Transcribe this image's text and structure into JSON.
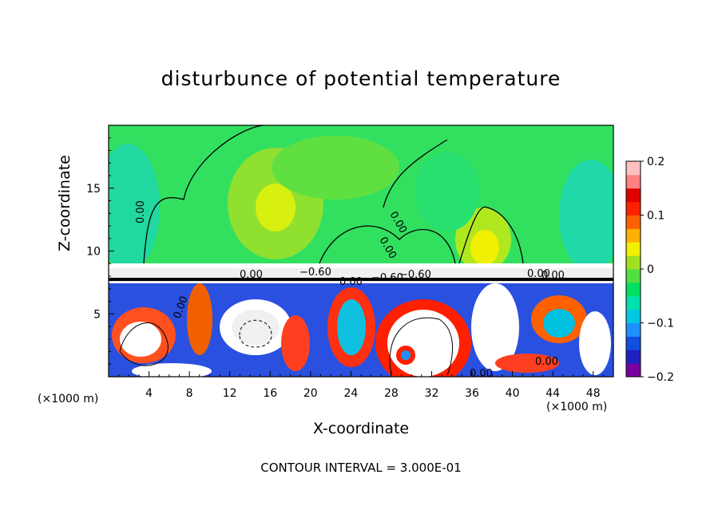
{
  "chart_data": {
    "type": "heatmap",
    "title": "disturbunce of potential temperature",
    "xlabel": "X-coordinate",
    "ylabel": "Z-coordinate",
    "x_unit_label": "(×1000 m)",
    "x_unit_label_right": "(×1000 m)",
    "xlim": [
      0,
      50
    ],
    "ylim": [
      0,
      20
    ],
    "x_ticks": [
      "4",
      "8",
      "12",
      "16",
      "20",
      "24",
      "28",
      "32",
      "36",
      "40",
      "44",
      "48"
    ],
    "y_ticks": [
      "5",
      "10",
      "15"
    ],
    "colorbar": {
      "range": [
        -0.2,
        0.2
      ],
      "ticks": [
        "0.2",
        "0.1",
        "0",
        "−0.1",
        "−0.2"
      ],
      "colors": [
        "#7a00a0",
        "#2020c0",
        "#1050e0",
        "#1e90ff",
        "#00c8e0",
        "#00e0b0",
        "#00e060",
        "#50e040",
        "#a0e020",
        "#f0f000",
        "#ffb000",
        "#ff6000",
        "#ff2000",
        "#e00000",
        "#ff8080",
        "#ffc0c0"
      ]
    },
    "contour_labels": [
      "0.00",
      "0.00",
      "0.00",
      "0.00",
      "0.00",
      "0.00",
      "0.00",
      "0.00",
      "−0.60",
      "−0.60",
      "−0.60",
      "0.00",
      "0.00"
    ],
    "contour_interval": "CONTOUR INTERVAL = 3.000E-01"
  }
}
